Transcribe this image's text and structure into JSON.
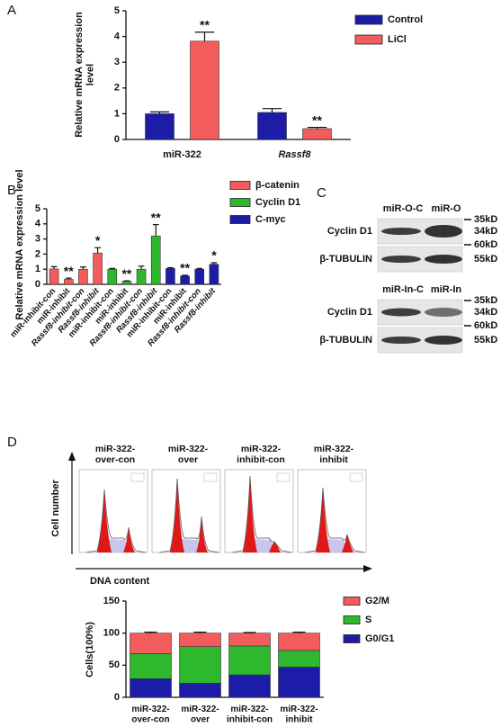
{
  "panel_labels": [
    "A",
    "B",
    "C",
    "D"
  ],
  "chart_data": [
    {
      "type": "bar",
      "categories": [
        "miR-322",
        "Rassf8"
      ],
      "series": [
        {
          "name": "Control",
          "color": "#1c1ca8",
          "values": [
            1.0,
            1.05
          ],
          "errors": [
            0.07,
            0.15
          ]
        },
        {
          "name": "LiCl",
          "color": "#f25c5c",
          "values": [
            3.82,
            0.42
          ],
          "errors": [
            0.35,
            0.05
          ],
          "value_annotations": [
            "**",
            "**"
          ]
        }
      ],
      "ylabel": "Relative mRNA expression\nlevel",
      "ylim": [
        0,
        5
      ],
      "yticks": [
        0,
        1,
        2,
        3,
        4,
        5
      ],
      "legend": "right"
    },
    {
      "type": "bar",
      "categories": [
        "miR-inhibit-con",
        "miR-inhibit",
        "Rassf8-inhibit-con",
        "Rassf8-inhibit",
        "miR-inhibit-con",
        "miR-inhibit",
        "Rassf8-inhibit-con",
        "Rassf8-inhibit",
        "miR-inhibit-con",
        "miR-inhibit",
        "Rassf8-inhibit-con",
        "Rassf8-inhibit"
      ],
      "series": [
        {
          "name": "β-catenin",
          "color": "#f25c5c",
          "values": [
            1.02,
            0.33,
            1.0,
            2.07,
            null,
            null,
            null,
            null,
            null,
            null,
            null,
            null
          ],
          "errors": [
            0.15,
            0.08,
            0.15,
            0.35,
            null,
            null,
            null,
            null,
            null,
            null,
            null,
            null
          ],
          "value_annotations": [
            null,
            "**",
            null,
            "*",
            null,
            null,
            null,
            null,
            null,
            null,
            null,
            null
          ]
        },
        {
          "name": "Cyclin D1",
          "color": "#2db82d",
          "values": [
            null,
            null,
            null,
            null,
            1.0,
            0.2,
            1.0,
            3.2,
            null,
            null,
            null,
            null
          ],
          "errors": [
            null,
            null,
            null,
            null,
            0.05,
            0.03,
            0.2,
            0.75,
            null,
            null,
            null,
            null
          ],
          "value_annotations": [
            null,
            null,
            null,
            null,
            null,
            "**",
            null,
            "**",
            null,
            null,
            null,
            null
          ]
        },
        {
          "name": "C-myc",
          "color": "#1c1ca8",
          "values": [
            null,
            null,
            null,
            null,
            null,
            null,
            null,
            null,
            1.05,
            0.55,
            1.0,
            1.33
          ],
          "errors": [
            null,
            null,
            null,
            null,
            null,
            null,
            null,
            null,
            0.05,
            0.05,
            0.05,
            0.1
          ],
          "value_annotations": [
            null,
            null,
            null,
            null,
            null,
            null,
            null,
            null,
            null,
            "**",
            null,
            "*"
          ]
        }
      ],
      "ylabel": "Relative mRNA expression level",
      "ylim": [
        0,
        5
      ],
      "yticks": [
        0,
        1,
        2,
        3,
        4,
        5
      ],
      "legend": "right"
    },
    {
      "type": "bar",
      "stacked": true,
      "categories": [
        "miR-322-\nover-con",
        "miR-322-\nover",
        "miR-322-\ninhibit-con",
        "miR-322-\ninhibit"
      ],
      "series": [
        {
          "name": "G0/G1",
          "color": "#1c1ca8",
          "values": [
            29,
            22,
            35,
            47
          ],
          "errors": [
            1.5,
            1,
            1.5,
            1.5
          ]
        },
        {
          "name": "S",
          "color": "#2db82d",
          "values": [
            39,
            57,
            45,
            26
          ],
          "errors": [
            2.5,
            2,
            1.5,
            2
          ]
        },
        {
          "name": "G2/M",
          "color": "#f25c5c",
          "values": [
            32,
            21,
            20,
            27
          ],
          "errors": [
            1.5,
            1.5,
            1,
            1.5
          ]
        }
      ],
      "ylabel": "Cells(100%)",
      "ylim": [
        0,
        150
      ],
      "yticks": [
        0,
        50,
        100,
        150
      ],
      "legend": "right"
    }
  ],
  "western_blot": {
    "blots": [
      {
        "lanes": [
          "miR-O-C",
          "miR-O"
        ],
        "proteins": [
          "Cyclin D1",
          "β-TUBULIN"
        ],
        "markers": [
          "35kD",
          "34kD",
          "60kD",
          "55kD"
        ]
      },
      {
        "lanes": [
          "miR-In-C",
          "miR-In"
        ],
        "proteins": [
          "Cyclin D1",
          "β-TUBULIN"
        ],
        "markers": [
          "35kD",
          "34kD",
          "60kD",
          "55kD"
        ]
      }
    ]
  },
  "flow_cytometry": {
    "titles": [
      "miR-322-\nover-con",
      "miR-322-\nover",
      "miR-322-\ninhibit-con",
      "miR-322-\ninhibit"
    ],
    "ylabel": "Cell number",
    "xlabel": "DNA content"
  }
}
